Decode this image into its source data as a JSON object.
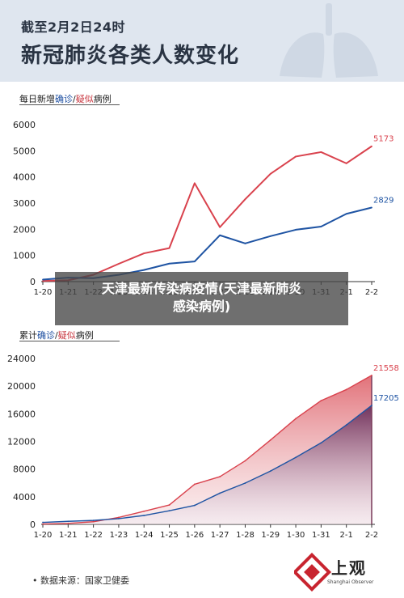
{
  "header": {
    "subtitle": "截至2月2日24时",
    "title": "新冠肺炎各类人数变化"
  },
  "panels": {
    "daily_label_prefix": "每日新增",
    "daily_label_confirmed": "确诊",
    "daily_label_sep": "/",
    "daily_label_suspected": "疑似",
    "daily_label_suffix": "病例",
    "cumul_label_prefix": "累计",
    "cumul_label_confirmed": "确诊",
    "cumul_label_sep": "/",
    "cumul_label_suspected": "疑似",
    "cumul_label_suffix": "病例"
  },
  "banner": {
    "line1": "天津最新传染病疫情(天津最新肺炎",
    "line2": "感染病例)"
  },
  "footer": {
    "source": "•  数据来源：国家卫健委",
    "logo_name": "上观",
    "logo_en": "Shanghai Observer"
  },
  "colors": {
    "suspected": "#d9424d",
    "confirmed": "#1f54a3",
    "header_bg": "#dfe6ef"
  },
  "chart_data": [
    {
      "type": "line",
      "categories": [
        "1-20",
        "1-21",
        "1-22",
        "1-23",
        "1-24",
        "1-25",
        "1-26",
        "1-27",
        "1-28",
        "1-29",
        "1-30",
        "1-31",
        "2-1",
        "2-2"
      ],
      "yticks": [
        0,
        1000,
        2000,
        3000,
        4000,
        5000,
        6000
      ],
      "ylim": [
        0,
        6000
      ],
      "series": [
        {
          "name": "疑似",
          "color": "#d9424d",
          "values": [
            27,
            50,
            260,
            680,
            1080,
            1280,
            3760,
            2080,
            3150,
            4120,
            4780,
            4950,
            4520,
            5173
          ],
          "end_label": "5173"
        },
        {
          "name": "确诊",
          "color": "#1f54a3",
          "values": [
            77,
            149,
            131,
            259,
            444,
            688,
            769,
            1771,
            1459,
            1737,
            1982,
            2102,
            2590,
            2829
          ],
          "end_label": "2829"
        }
      ]
    },
    {
      "type": "area",
      "categories": [
        "1-20",
        "1-21",
        "1-22",
        "1-23",
        "1-24",
        "1-25",
        "1-26",
        "1-27",
        "1-28",
        "1-29",
        "1-30",
        "1-31",
        "2-1",
        "2-2"
      ],
      "yticks": [
        0,
        4000,
        8000,
        12000,
        16000,
        20000,
        24000
      ],
      "ylim": [
        0,
        24000
      ],
      "series": [
        {
          "name": "疑似",
          "color": "#d9424d",
          "values": [
            54,
            140,
            380,
            1000,
            1900,
            2800,
            5800,
            6900,
            9200,
            12200,
            15300,
            17900,
            19500,
            21558
          ],
          "end_label": "21558"
        },
        {
          "name": "确诊",
          "color": "#1f54a3",
          "values": [
            291,
            440,
            571,
            830,
            1287,
            1975,
            2744,
            4515,
            5974,
            7711,
            9692,
            11791,
            14380,
            17205
          ],
          "end_label": "17205"
        }
      ]
    }
  ]
}
